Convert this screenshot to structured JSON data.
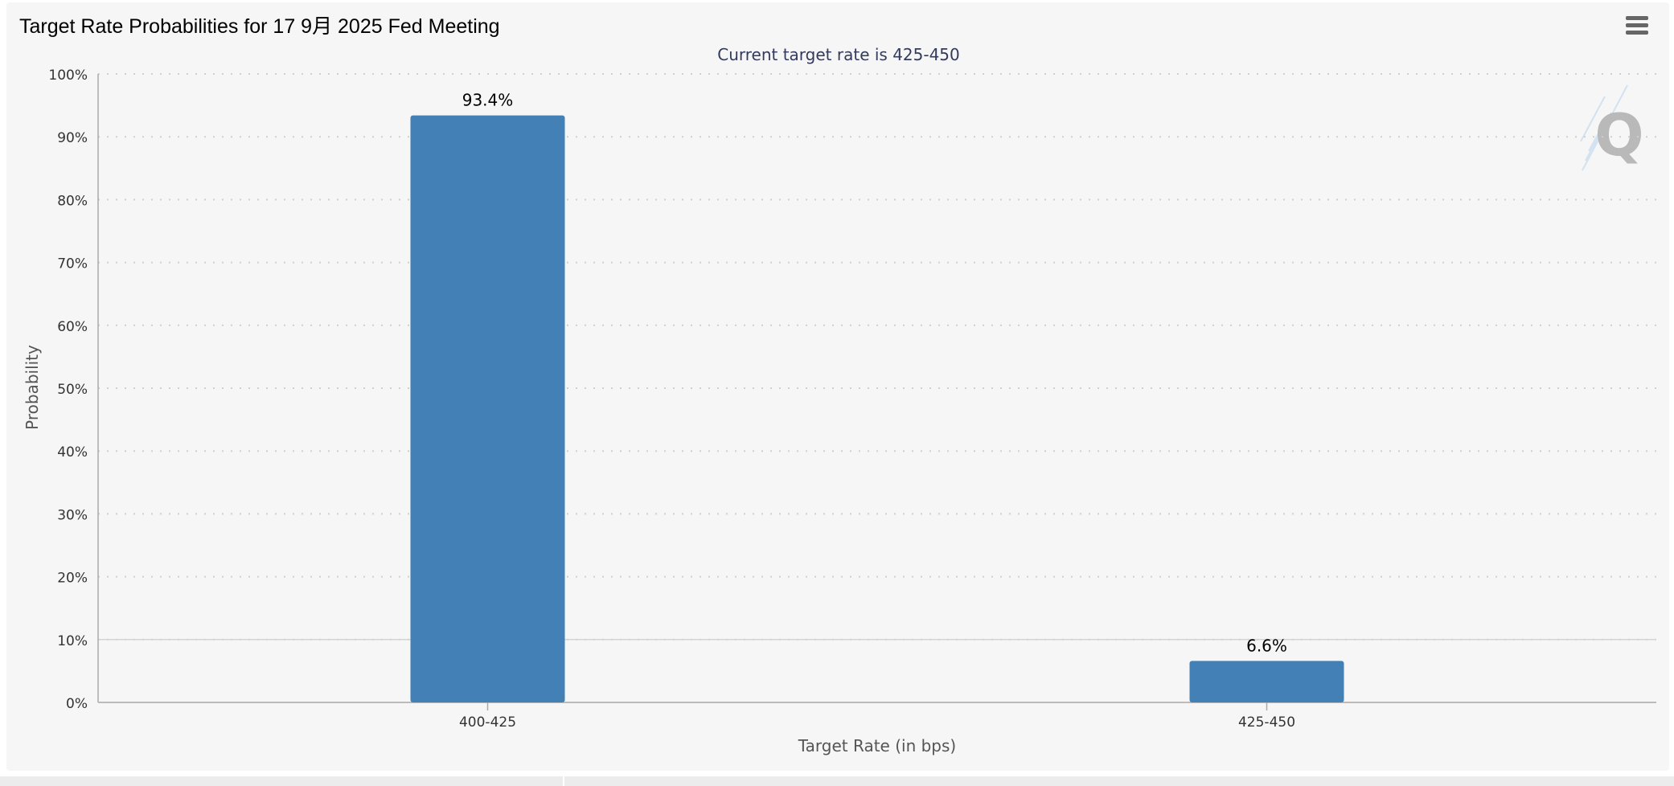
{
  "chart_data": {
    "type": "bar",
    "title": "Target Rate Probabilities for 17 9月 2025 Fed Meeting",
    "subtitle": "Current target rate is 425-450",
    "xlabel": "Target Rate (in bps)",
    "ylabel": "Probability",
    "categories": [
      "400-425",
      "425-450"
    ],
    "values": [
      93.4,
      6.6
    ],
    "data_labels": [
      "93.4%",
      "6.6%"
    ],
    "ylim": [
      0,
      100
    ],
    "y_ticks": [
      0,
      10,
      20,
      30,
      40,
      50,
      60,
      70,
      80,
      90,
      100
    ],
    "y_tick_labels": [
      "0%",
      "10%",
      "20%",
      "30%",
      "40%",
      "50%",
      "60%",
      "70%",
      "80%",
      "90%",
      "100%"
    ],
    "grid": true,
    "bar_color": "#4380b5"
  },
  "menu": {
    "icon": "hamburger-menu-icon"
  },
  "watermark": {
    "icon": "q-logo-icon",
    "text": "Q"
  }
}
